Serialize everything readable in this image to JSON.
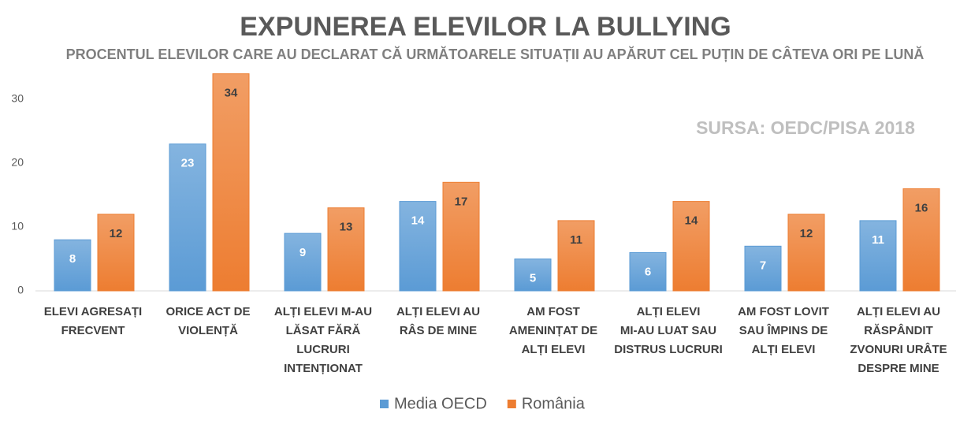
{
  "chart_data": {
    "type": "bar",
    "title": "EXPUNEREA ELEVILOR LA BULLYING",
    "subtitle": "PROCENTUL ELEVILOR CARE AU DECLARAT CĂ URMĂTOARELE SITUAȚII AU APĂRUT CEL PUȚIN DE CÂTEVA ORI PE LUNĂ",
    "annotation": "SURSA: OEDC/PISA 2018",
    "categories": [
      "ELEVI AGRESAȚI FRECVENT",
      "ORICE ACT DE VIOLENȚĂ",
      "ALȚI ELEVI M-AU LĂSAT FĂRĂ LUCRURI INTENȚIONAT",
      "ALȚI ELEVI AU RÂS DE MINE",
      "AM FOST AMENINȚAT DE ALȚI ELEVI",
      "ALȚI ELEVI MI-AU LUAT SAU DISTRUS LUCRURI",
      "AM FOST LOVIT SAU ÎMPINS DE ALȚI ELEVI",
      "ALȚI ELEVI AU RĂSPÂNDIT ZVONURI URÂTE DESPRE MINE"
    ],
    "series": [
      {
        "name": "Media OECD",
        "color": "#5b9bd5",
        "values": [
          8,
          23,
          9,
          14,
          5,
          6,
          7,
          11
        ]
      },
      {
        "name": "România",
        "color": "#ed7d31",
        "values": [
          12,
          34,
          13,
          17,
          11,
          14,
          12,
          16
        ]
      }
    ],
    "ylim": [
      0,
      35
    ],
    "yticks": [
      0,
      10,
      20,
      30
    ],
    "grid": false,
    "legend": "bottom"
  }
}
